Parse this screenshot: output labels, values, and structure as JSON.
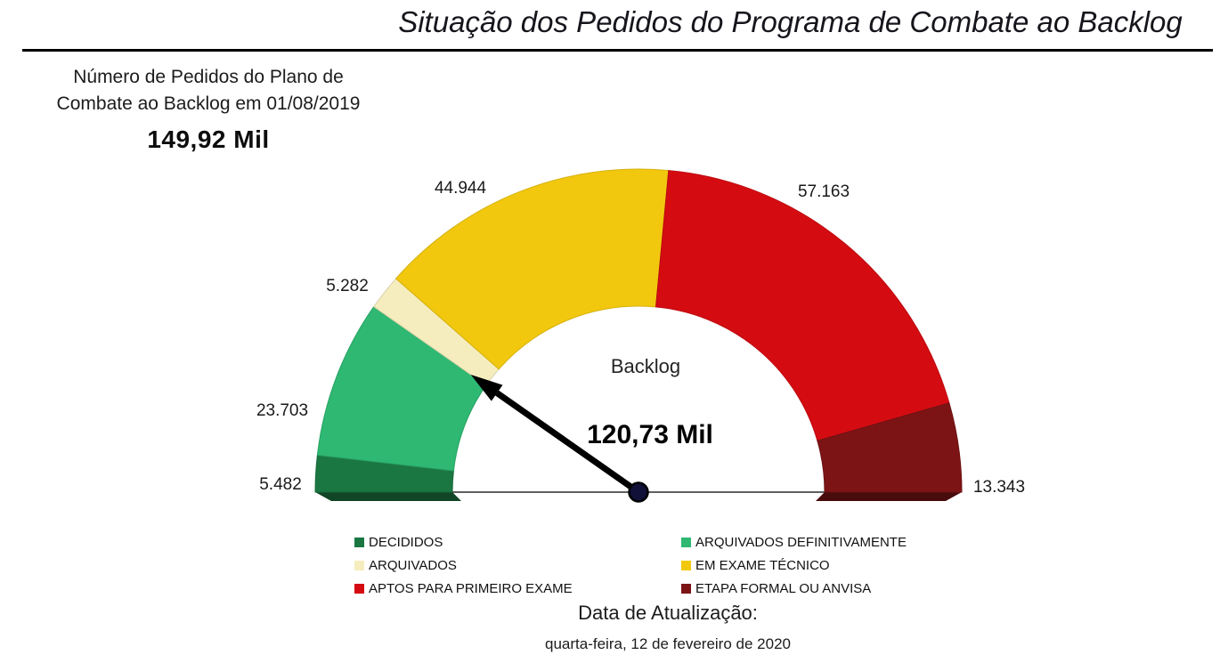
{
  "title": "Situação dos Pedidos do Programa de Combate ao Backlog",
  "total_card": {
    "label_line1": "Número de Pedidos do Plano de",
    "label_line2": "Combate ao Backlog em 01/08/2019",
    "value": "149,92 Mil"
  },
  "footer": {
    "label": "Data de Atualização:",
    "date": "quarta-feira, 12 de fevereiro de 2020"
  },
  "chart_data": {
    "type": "gauge",
    "title": "Situação dos Pedidos do Programa de Combate ao Backlog",
    "arc_degrees": 180,
    "legend_position": "bottom",
    "total": {
      "value": 149917,
      "display": "149,92 Mil"
    },
    "needle": {
      "label": "Backlog",
      "value": 120732,
      "display": "120,73 Mil"
    },
    "needle_color": "#000000",
    "pivot_color": "#101038",
    "baseline_color": "#2a2a2a",
    "segments": [
      {
        "label": "DECIDIDOS",
        "value": 5482,
        "display": "5.482",
        "color": "#1b7742"
      },
      {
        "label": "ARQUIVADOS DEFINITIVAMENTE",
        "value": 23703,
        "display": "23.703",
        "color": "#2eb872"
      },
      {
        "label": "ARQUIVADOS",
        "value": 5282,
        "display": "5.282",
        "color": "#f6edbe"
      },
      {
        "label": "EM EXAME TÉCNICO",
        "value": 44944,
        "display": "44.944",
        "color": "#f2c80f"
      },
      {
        "label": "APTOS PARA PRIMEIRO EXAME",
        "value": 57163,
        "display": "57.163",
        "color": "#d40c12"
      },
      {
        "label": "ETAPA FORMAL OU ANVISA",
        "value": 13343,
        "display": "13.343",
        "color": "#7c1416"
      }
    ]
  }
}
